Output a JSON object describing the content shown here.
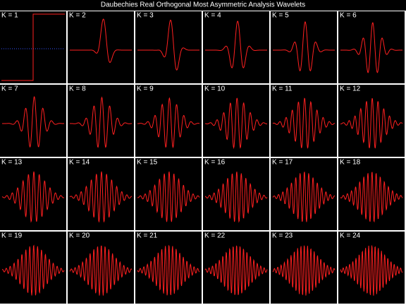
{
  "title": "Daubechies Real Orthogonal Most Asymmetric Analysis Wavelets",
  "panels": [
    {
      "label": "K = 1"
    },
    {
      "label": "K = 2"
    },
    {
      "label": "K = 3"
    },
    {
      "label": "K = 4"
    },
    {
      "label": "K = 5"
    },
    {
      "label": "K = 6"
    },
    {
      "label": "K = 7"
    },
    {
      "label": "K = 8"
    },
    {
      "label": "K = 9"
    },
    {
      "label": "K = 10"
    },
    {
      "label": "K = 11"
    },
    {
      "label": "K = 12"
    },
    {
      "label": "K = 13"
    },
    {
      "label": "K = 14"
    },
    {
      "label": "K = 15"
    },
    {
      "label": "K = 16"
    },
    {
      "label": "K = 17"
    },
    {
      "label": "K = 18"
    },
    {
      "label": "K = 19"
    },
    {
      "label": "K = 20"
    },
    {
      "label": "K = 21"
    },
    {
      "label": "K = 22"
    },
    {
      "label": "K = 23"
    },
    {
      "label": "K = 24"
    }
  ]
}
